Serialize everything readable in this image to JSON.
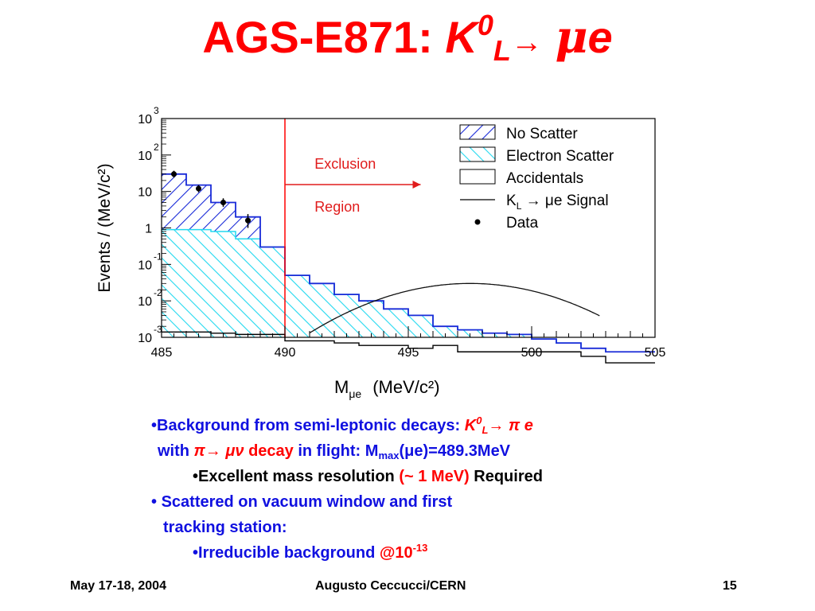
{
  "title": {
    "prefix": "AGS-E871: ",
    "k": "K",
    "k_sup": "0",
    "k_sub": "L",
    "arrow": "→",
    "mu": "μ",
    "e": "e"
  },
  "chart_data": {
    "type": "histogram",
    "xlabel_main": "M",
    "xlabel_sub": "μe",
    "xlabel_units": "(MeV/c²)",
    "ylabel": "Events / (MeV/c²)",
    "xlim": [
      485,
      505
    ],
    "x_ticks": [
      "485",
      "490",
      "495",
      "500",
      "505"
    ],
    "y_log": true,
    "y_ticks": [
      {
        "base": "10",
        "exp": "3",
        "value": 1000
      },
      {
        "base": "10",
        "exp": "2",
        "value": 100
      },
      {
        "base": "10",
        "exp": "",
        "value": 10
      },
      {
        "base": "1",
        "exp": "",
        "value": 1
      },
      {
        "base": "10",
        "exp": "-1",
        "value": 0.1
      },
      {
        "base": "10",
        "exp": "-2",
        "value": 0.01
      },
      {
        "base": "10",
        "exp": "-3",
        "value": 0.001
      }
    ],
    "bin_edges": [
      485,
      486,
      487,
      488,
      489,
      490,
      491,
      492,
      493,
      494,
      495,
      496,
      497,
      498,
      499,
      500,
      501,
      502,
      503,
      504,
      505
    ],
    "series": [
      {
        "name": "No Scatter",
        "style": "blue-hatch",
        "values": [
          30,
          15,
          5,
          2,
          0.3,
          0.05,
          0.03,
          0.015,
          0.01,
          0.006,
          0.004,
          0.002,
          0.0016,
          0.0013,
          0.0012,
          0.0009,
          0.0007,
          0.0005,
          0.0004,
          0.0004
        ]
      },
      {
        "name": "Electron Scatter",
        "style": "cyan-hatch",
        "values": [
          0.9,
          0.9,
          0.8,
          0.5,
          0.3,
          0.05,
          0.03,
          0.015,
          0.01,
          0.006,
          0.004,
          0.002,
          0.0016,
          0.0013,
          0.0012,
          0.0009,
          0.0007,
          0.0005,
          0.0004,
          0.0004
        ]
      },
      {
        "name": "Accidentals",
        "style": "black-line",
        "values": [
          0.0014,
          0.0014,
          0.0013,
          0.0012,
          0.0012,
          0.0008,
          0.0008,
          0.0007,
          0.0006,
          0.0006,
          0.0005,
          0.0006,
          0.0004,
          0.0004,
          0.0004,
          0.0004,
          0.0004,
          0.0003,
          0.0002,
          0.0002
        ]
      },
      {
        "name": "K_L → μe Signal",
        "style": "curve",
        "center": 497.5,
        "peak": 0.03,
        "x_start": 491.0,
        "x_end": 502.8
      },
      {
        "name": "Data",
        "style": "points",
        "x": [
          485.5,
          486.5,
          487.5,
          488.5
        ],
        "values": [
          30,
          12,
          5,
          1.6
        ],
        "err_low": [
          24,
          9.5,
          3.8,
          1.0
        ],
        "err_high": [
          37,
          15,
          6.5,
          2.4
        ]
      }
    ],
    "exclusion_line_x": 490,
    "annotation_line1": "Exclusion",
    "annotation_line2": "Region",
    "legend": [
      {
        "key": "no_scatter",
        "label": "No Scatter"
      },
      {
        "key": "electron_scatter",
        "label": "Electron Scatter"
      },
      {
        "key": "accidentals",
        "label": "Accidentals"
      },
      {
        "key": "signal",
        "label_k": "K",
        "label_sub": "L",
        "label_rest": " → μe Signal"
      },
      {
        "key": "data",
        "label": "Data"
      }
    ]
  },
  "bullets": {
    "b1_bullet": "•",
    "b1_text": "Background from semi-leptonic decays: ",
    "b1_k": "K",
    "b1_k_sup": "0",
    "b1_k_sub": "L",
    "b1_arrow": "→",
    "b1_pi": " π",
    "b1_e": " e",
    "b2_with": "with ",
    "b2_decay_sym": "π→ μν",
    "b2_decay": " decay",
    "b2_rest": " in flight:  M",
    "b2_sub": "max",
    "b2_paren": "(",
    "b2_mu": "μ",
    "b2_val": "e)=489.3MeV",
    "b3_bullet": "•",
    "b3_text": "Excellent mass resolution ",
    "b3_red": "(~ 1 MeV)",
    "b3_req": " Required",
    "b4_bullet": "•",
    "b4_text": " Scattered on vacuum window and first",
    "b5_text": "tracking station:",
    "b6_bullet": "•",
    "b6_text": "Irreducible background ",
    "b6_red": "@10",
    "b6_sup": "-13"
  },
  "footer": {
    "date": "May 17-18, 2004",
    "author": "Augusto Ceccucci/CERN",
    "page": "15"
  }
}
